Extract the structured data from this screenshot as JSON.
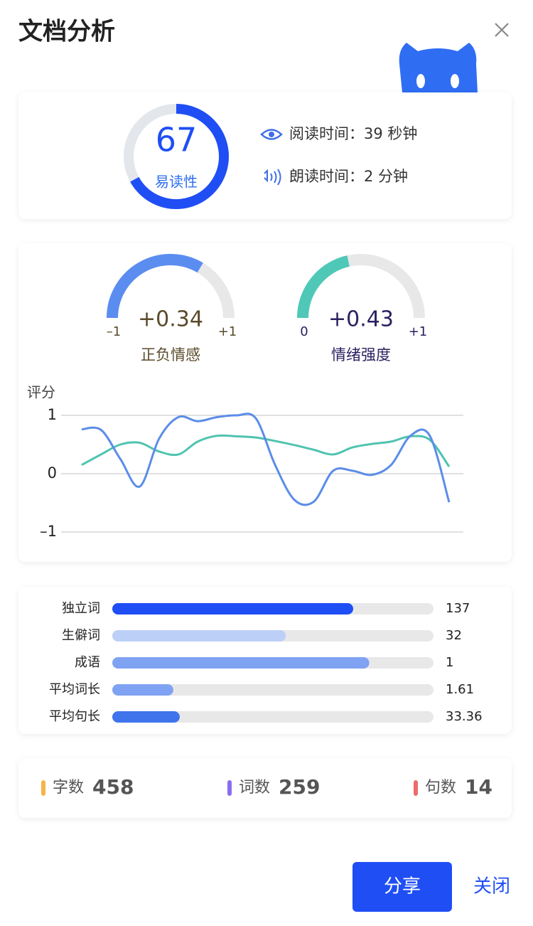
{
  "header": {
    "title": "文档分析"
  },
  "readability": {
    "value": 67,
    "max": 100,
    "label": "易读性",
    "color": "#1f4ef5"
  },
  "times": [
    "阅读时间：39 秒钟",
    "朗读时间：2 分钟"
  ],
  "gauges": [
    {
      "value": 0.34,
      "value_label": "+0.34",
      "label": "正负情感",
      "color": "#5b8df0",
      "range": [
        {
          "value": -1,
          "label": "–1"
        },
        {
          "value": 1,
          "label": "+1"
        }
      ]
    },
    {
      "value": 0.43,
      "value_label": "+0.43",
      "label": "情绪强度",
      "color": "#4fc8b8",
      "range": [
        0,
        {
          "value": 1,
          "label": "+1"
        }
      ]
    }
  ],
  "chart_data": {
    "type": "line",
    "y_label": "评分",
    "ylim": [
      -1,
      1
    ],
    "yticks": [
      {
        "value": -1,
        "label": "–1"
      },
      0,
      1
    ],
    "grid": true,
    "series": [
      {
        "color": "#5b8de8",
        "values": [
          0.76,
          0.75,
          0.25,
          -0.22,
          0.6,
          0.97,
          0.9,
          0.97,
          1.0,
          0.95,
          0.15,
          -0.45,
          -0.48,
          0.05,
          0.05,
          -0.02,
          0.15,
          0.65,
          0.65,
          -0.49
        ]
      },
      {
        "color": "#4fc3b0",
        "values": [
          0.15,
          0.33,
          0.5,
          0.53,
          0.38,
          0.33,
          0.55,
          0.65,
          0.64,
          0.62,
          0.56,
          0.49,
          0.41,
          0.33,
          0.45,
          0.51,
          0.55,
          0.64,
          0.58,
          0.12
        ]
      }
    ]
  },
  "breakdown": {
    "categories": [
      "独立词",
      "生僻词",
      "成语",
      "平均词长",
      "平均句长"
    ],
    "values": [
      137,
      32,
      1,
      1.61,
      33.36
    ],
    "fill_percent": [
      75,
      54,
      80,
      19,
      21
    ],
    "colors": [
      "#1f4ef5",
      "#bcd0f7",
      "#7fa3f2",
      "#7fa3f2",
      "#3f74ec"
    ]
  },
  "stats": [
    {
      "label": "字数",
      "value": 458,
      "color": "#f5b54a"
    },
    {
      "label": "词数",
      "value": 259,
      "color": "#8a6cf0"
    },
    {
      "label": "句数",
      "value": 14,
      "color": "#ef6a6a"
    }
  ],
  "buttons": {
    "share": "分享",
    "close": "关闭"
  }
}
